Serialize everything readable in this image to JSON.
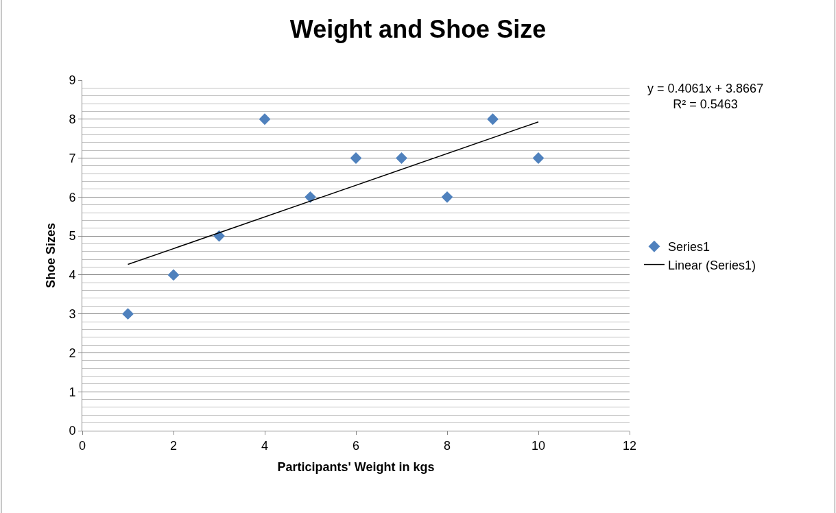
{
  "chart_data": {
    "type": "scatter",
    "title": "Weight and Shoe Size",
    "xlabel": "Participants' Weight in kgs",
    "ylabel": "Shoe Sizes",
    "x": [
      1,
      2,
      3,
      4,
      5,
      6,
      7,
      8,
      9,
      10
    ],
    "series": [
      {
        "name": "Series1",
        "color": "#4f81bd",
        "marker": "diamond",
        "values": [
          3,
          4,
          5,
          8,
          6,
          7,
          7,
          6,
          8,
          7
        ]
      },
      {
        "name": "Linear (Series1)",
        "type": "line",
        "color": "#000000",
        "marker": "none",
        "line_style": "solid",
        "x": [
          1,
          10
        ],
        "values": [
          4.27,
          7.93
        ]
      }
    ],
    "xlim": [
      0,
      12
    ],
    "xticks": [
      0,
      2,
      4,
      6,
      8,
      10,
      12
    ],
    "ylim": [
      0,
      9
    ],
    "yticks": [
      0,
      1,
      2,
      3,
      4,
      5,
      6,
      7,
      8,
      9
    ],
    "grid": "y",
    "legend": "right",
    "annotations": [
      "y = 0.4061x + 3.8667\nR² = 0.5463"
    ]
  }
}
